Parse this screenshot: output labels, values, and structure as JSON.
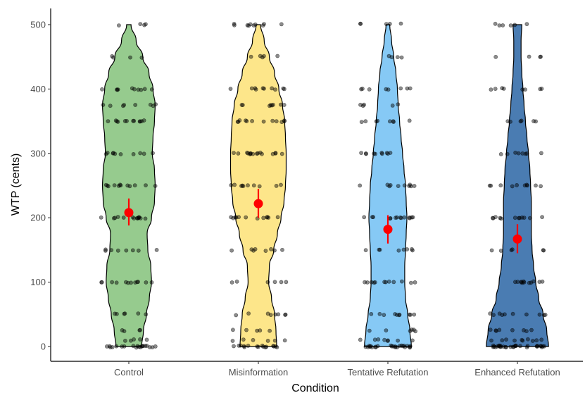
{
  "chart_data": {
    "type": "violin",
    "xlabel": "Condition",
    "ylabel": "WTP (cents)",
    "ylim": [
      0,
      500
    ],
    "yticks": [
      0,
      100,
      200,
      300,
      400,
      500
    ],
    "grid": false,
    "legend": "none",
    "categories": [
      "Control",
      "Misinformation",
      "Tentative Refutation",
      "Enhanced Refutation"
    ],
    "fill_colors": [
      "#96cb8e",
      "#fde68a",
      "#86c9f5",
      "#4a7cb2"
    ],
    "mean_color": "#ff0000",
    "point_color": "#000000",
    "series": [
      {
        "mean": 208,
        "ci": [
          188,
          230
        ],
        "density": [
          [
            0,
            0.35
          ],
          [
            25,
            0.4
          ],
          [
            50,
            0.48
          ],
          [
            75,
            0.56
          ],
          [
            100,
            0.62
          ],
          [
            125,
            0.6
          ],
          [
            150,
            0.52
          ],
          [
            175,
            0.5
          ],
          [
            200,
            0.62
          ],
          [
            225,
            0.7
          ],
          [
            250,
            0.72
          ],
          [
            275,
            0.7
          ],
          [
            300,
            0.64
          ],
          [
            325,
            0.66
          ],
          [
            350,
            0.7
          ],
          [
            375,
            0.72
          ],
          [
            400,
            0.66
          ],
          [
            425,
            0.55
          ],
          [
            450,
            0.38
          ],
          [
            475,
            0.2
          ],
          [
            500,
            0.06
          ]
        ],
        "clusters": [
          [
            0,
            20
          ],
          [
            10,
            5
          ],
          [
            25,
            4
          ],
          [
            50,
            6
          ],
          [
            100,
            12
          ],
          [
            150,
            8
          ],
          [
            200,
            14
          ],
          [
            250,
            12
          ],
          [
            300,
            10
          ],
          [
            350,
            12
          ],
          [
            375,
            8
          ],
          [
            400,
            10
          ],
          [
            450,
            4
          ],
          [
            500,
            4
          ]
        ]
      },
      {
        "mean": 222,
        "ci": [
          200,
          245
        ],
        "density": [
          [
            0,
            0.5
          ],
          [
            25,
            0.48
          ],
          [
            50,
            0.44
          ],
          [
            75,
            0.36
          ],
          [
            100,
            0.28
          ],
          [
            125,
            0.3
          ],
          [
            150,
            0.42
          ],
          [
            175,
            0.52
          ],
          [
            200,
            0.62
          ],
          [
            225,
            0.7
          ],
          [
            250,
            0.74
          ],
          [
            275,
            0.76
          ],
          [
            300,
            0.76
          ],
          [
            325,
            0.74
          ],
          [
            350,
            0.72
          ],
          [
            375,
            0.66
          ],
          [
            400,
            0.56
          ],
          [
            425,
            0.44
          ],
          [
            450,
            0.3
          ],
          [
            475,
            0.16
          ],
          [
            500,
            0.06
          ]
        ],
        "clusters": [
          [
            0,
            16
          ],
          [
            10,
            6
          ],
          [
            25,
            5
          ],
          [
            50,
            8
          ],
          [
            100,
            6
          ],
          [
            150,
            8
          ],
          [
            200,
            12
          ],
          [
            250,
            10
          ],
          [
            300,
            16
          ],
          [
            350,
            12
          ],
          [
            375,
            8
          ],
          [
            400,
            10
          ],
          [
            450,
            5
          ],
          [
            500,
            10
          ]
        ]
      },
      {
        "mean": 182,
        "ci": [
          160,
          204
        ],
        "density": [
          [
            0,
            0.64
          ],
          [
            25,
            0.6
          ],
          [
            50,
            0.54
          ],
          [
            75,
            0.48
          ],
          [
            100,
            0.46
          ],
          [
            125,
            0.46
          ],
          [
            150,
            0.48
          ],
          [
            175,
            0.5
          ],
          [
            200,
            0.52
          ],
          [
            225,
            0.5
          ],
          [
            250,
            0.48
          ],
          [
            275,
            0.44
          ],
          [
            300,
            0.4
          ],
          [
            325,
            0.36
          ],
          [
            350,
            0.32
          ],
          [
            375,
            0.28
          ],
          [
            400,
            0.26
          ],
          [
            425,
            0.22
          ],
          [
            450,
            0.16
          ],
          [
            475,
            0.1
          ],
          [
            500,
            0.05
          ]
        ],
        "clusters": [
          [
            0,
            24
          ],
          [
            10,
            8
          ],
          [
            25,
            6
          ],
          [
            50,
            10
          ],
          [
            100,
            12
          ],
          [
            150,
            8
          ],
          [
            200,
            14
          ],
          [
            250,
            10
          ],
          [
            300,
            10
          ],
          [
            350,
            8
          ],
          [
            375,
            5
          ],
          [
            400,
            8
          ],
          [
            450,
            4
          ],
          [
            500,
            5
          ]
        ]
      },
      {
        "mean": 167,
        "ci": [
          145,
          190
        ],
        "density": [
          [
            0,
            0.85
          ],
          [
            25,
            0.8
          ],
          [
            50,
            0.7
          ],
          [
            75,
            0.58
          ],
          [
            100,
            0.5
          ],
          [
            125,
            0.44
          ],
          [
            150,
            0.4
          ],
          [
            175,
            0.38
          ],
          [
            200,
            0.38
          ],
          [
            225,
            0.38
          ],
          [
            250,
            0.36
          ],
          [
            275,
            0.34
          ],
          [
            300,
            0.3
          ],
          [
            325,
            0.26
          ],
          [
            350,
            0.22
          ],
          [
            375,
            0.18
          ],
          [
            400,
            0.15
          ],
          [
            425,
            0.12
          ],
          [
            450,
            0.1
          ],
          [
            475,
            0.1
          ],
          [
            500,
            0.12
          ]
        ],
        "clusters": [
          [
            0,
            30
          ],
          [
            10,
            10
          ],
          [
            25,
            8
          ],
          [
            50,
            10
          ],
          [
            100,
            12
          ],
          [
            150,
            6
          ],
          [
            200,
            12
          ],
          [
            250,
            10
          ],
          [
            300,
            8
          ],
          [
            350,
            6
          ],
          [
            400,
            8
          ],
          [
            450,
            4
          ],
          [
            500,
            6
          ]
        ]
      }
    ]
  }
}
